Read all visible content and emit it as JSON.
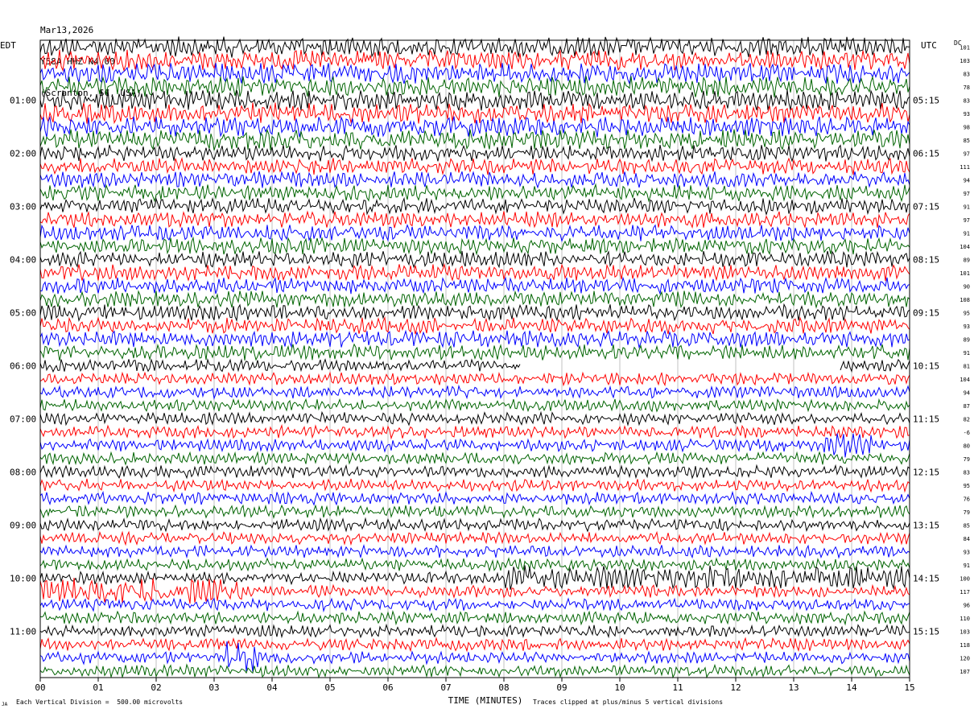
{
  "header": {
    "date": "Mar13,2026",
    "station": "Y58A HHZ N4 00",
    "location": "(Scranton, SC, USA)"
  },
  "left_zone": "EDT",
  "right_zone": "UTC",
  "dc_label": "DC",
  "footer": {
    "scale": "Each Vertical Division =  500.00 microvolts",
    "clip": "Traces clipped at plus/minus 5 vertical divisions",
    "corner": "JA"
  },
  "colors": {
    "trace_cycle": [
      "#000000",
      "#ff0000",
      "#0000ff",
      "#006400"
    ],
    "grid": "#c0c0c0",
    "frame": "#000000"
  },
  "chart_data": {
    "type": "line",
    "title": "Mar13,2026 Y58A HHZ N4 00 (Scranton, SC, USA)",
    "xlabel": "TIME (MINUTES)",
    "ylabel": "",
    "xlim": [
      0,
      15
    ],
    "x_ticks": [
      "00",
      "01",
      "02",
      "03",
      "04",
      "05",
      "06",
      "07",
      "08",
      "09",
      "10",
      "11",
      "12",
      "13",
      "14",
      "15"
    ],
    "left_hour_labels": [
      "01:00",
      "02:00",
      "03:00",
      "04:00",
      "05:00",
      "06:00",
      "07:00",
      "08:00",
      "09:00",
      "10:00",
      "11:00"
    ],
    "right_hour_labels": [
      "05:15",
      "06:15",
      "07:15",
      "08:15",
      "09:15",
      "10:15",
      "11:15",
      "12:15",
      "13:15",
      "14:15",
      "15:15"
    ],
    "dc_offsets": [
      101,
      103,
      83,
      78,
      83,
      93,
      98,
      85,
      97,
      111,
      94,
      97,
      91,
      97,
      91,
      104,
      89,
      101,
      90,
      108,
      95,
      93,
      89,
      91,
      81,
      104,
      94,
      87,
      82,
      -6,
      80,
      79,
      83,
      95,
      76,
      79,
      85,
      84,
      93,
      91,
      100,
      117,
      96,
      110,
      103,
      118,
      120,
      107
    ],
    "trace_count": 48,
    "minutes_per_trace": 15,
    "gap": {
      "trace_index": 24,
      "start_minute": 8.3,
      "end_minute": 13.8
    },
    "grid": true
  }
}
